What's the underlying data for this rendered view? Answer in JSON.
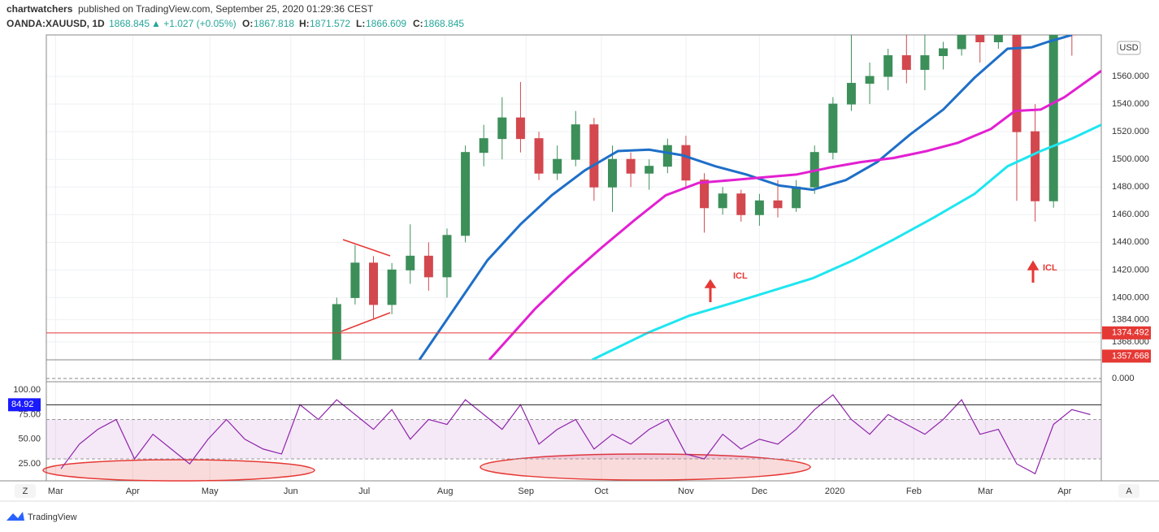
{
  "header": {
    "publisher": "chartwatchers",
    "published": "published on TradingView.com, September 25, 2020 01:29:36 CEST",
    "symbol": "OANDA:XAUUSD, 1D",
    "last": "1868.845",
    "change": "▲ +1.027 (+0.05%)",
    "o_label": "O:",
    "o": "1867.818",
    "h_label": "H:",
    "h": "1871.572",
    "l_label": "L:",
    "l": "1866.609",
    "c_label": "C:",
    "c": "1868.845"
  },
  "footer": {
    "brand": "TradingView",
    "z": "Z",
    "a": "A"
  },
  "chart_data": [
    {
      "type": "candlestick",
      "currency": "USD",
      "xlim": [
        -15.8,
        41.6
      ],
      "xticks": [
        {
          "value": -15.3,
          "label": "Mar"
        },
        {
          "value": -11.1,
          "label": "Apr"
        },
        {
          "value": -6.9,
          "label": "May"
        },
        {
          "value": -2.5,
          "label": "Jun"
        },
        {
          "value": 1.5,
          "label": "Jul"
        },
        {
          "value": 5.9,
          "label": "Aug"
        },
        {
          "value": 10.3,
          "label": "Sep"
        },
        {
          "value": 14.4,
          "label": "Oct"
        },
        {
          "value": 19.0,
          "label": "Nov"
        },
        {
          "value": 23.0,
          "label": "Dec"
        },
        {
          "value": 27.1,
          "label": "2020"
        },
        {
          "value": 31.4,
          "label": "Feb"
        },
        {
          "value": 35.3,
          "label": "Mar"
        },
        {
          "value": 39.6,
          "label": "Apr"
        }
      ],
      "ylim": [
        1355,
        1590
      ],
      "yticks": [
        {
          "value": 1368,
          "label": "1368.000"
        },
        {
          "value": 1384,
          "label": "1384.000"
        },
        {
          "value": 1400,
          "label": "1400.000"
        },
        {
          "value": 1420,
          "label": "1420.000"
        },
        {
          "value": 1440,
          "label": "1440.000"
        },
        {
          "value": 1460,
          "label": "1460.000"
        },
        {
          "value": 1480,
          "label": "1480.000"
        },
        {
          "value": 1500,
          "label": "1500.000"
        },
        {
          "value": 1520,
          "label": "1520.000"
        },
        {
          "value": 1540,
          "label": "1540.000"
        },
        {
          "value": 1560,
          "label": "1560.000"
        }
      ],
      "up_color": "#3d8f5a",
      "down_color": "#d2484e",
      "open": [
        1345,
        1400,
        1425,
        1395,
        1420,
        1430,
        1415,
        1445,
        1505,
        1515,
        1530,
        1515,
        1490,
        1500,
        1525,
        1480,
        1500,
        1490,
        1495,
        1510,
        1485,
        1465,
        1475,
        1460,
        1470,
        1465,
        1480,
        1505,
        1540,
        1555,
        1560,
        1575,
        1565,
        1575,
        1580,
        1600,
        1585,
        1600,
        1520,
        1470,
        1605
      ],
      "high": [
        1400,
        1438,
        1430,
        1425,
        1453,
        1440,
        1450,
        1510,
        1525,
        1545,
        1556,
        1520,
        1510,
        1535,
        1530,
        1510,
        1505,
        1500,
        1515,
        1517,
        1490,
        1480,
        1478,
        1475,
        1485,
        1485,
        1510,
        1545,
        1592,
        1570,
        1580,
        1592,
        1590,
        1585,
        1610,
        1615,
        1610,
        1610,
        1540,
        1620,
        1615
      ],
      "low": [
        1344,
        1395,
        1385,
        1388,
        1410,
        1405,
        1400,
        1440,
        1495,
        1500,
        1505,
        1485,
        1485,
        1495,
        1470,
        1462,
        1480,
        1478,
        1490,
        1480,
        1447,
        1460,
        1455,
        1452,
        1458,
        1462,
        1475,
        1500,
        1535,
        1540,
        1550,
        1555,
        1550,
        1565,
        1575,
        1570,
        1580,
        1470,
        1455,
        1465,
        1575
      ],
      "close": [
        1395,
        1425,
        1395,
        1420,
        1430,
        1415,
        1445,
        1505,
        1515,
        1530,
        1515,
        1490,
        1500,
        1525,
        1480,
        1500,
        1490,
        1495,
        1510,
        1485,
        1465,
        1475,
        1460,
        1470,
        1465,
        1480,
        1505,
        1540,
        1555,
        1560,
        1575,
        1565,
        1575,
        1580,
        1600,
        1585,
        1600,
        1520,
        1470,
        1605,
        1590
      ],
      "lines": [
        {
          "color": "#1e6fc8",
          "x": [
            4.5,
            6.4,
            8.2,
            10.0,
            11.7,
            13.5,
            15.3,
            17.0,
            18.8,
            20.6,
            22.3,
            24.1,
            25.9,
            27.7,
            29.4,
            31.2,
            33.0,
            34.7,
            36.5,
            37.8,
            38.7,
            40.0
          ],
          "values": [
            1355,
            1392,
            1427,
            1453,
            1474,
            1492,
            1506,
            1507,
            1503,
            1495,
            1489,
            1481,
            1478,
            1485,
            1498,
            1518,
            1536,
            1559,
            1580,
            1581,
            1585,
            1590
          ]
        },
        {
          "color": "#e220d2",
          "x": [
            8.3,
            10.8,
            12.6,
            14.4,
            16.2,
            17.9,
            19.7,
            21.5,
            23.2,
            25.0,
            26.8,
            28.5,
            30.3,
            32.1,
            33.8,
            35.6,
            36.9,
            38.3,
            39.6,
            41.6
          ],
          "values": [
            1355,
            1392,
            1415,
            1436,
            1456,
            1474,
            1483,
            1485,
            1487,
            1489,
            1494,
            1498,
            1501,
            1506,
            1512,
            1522,
            1535,
            1536,
            1545,
            1564
          ]
        },
        {
          "color": "#1ee6f0",
          "x": [
            13.9,
            17.0,
            19.2,
            21.5,
            23.7,
            25.9,
            28.1,
            30.3,
            32.5,
            34.7,
            36.5,
            38.3,
            40.0,
            41.6
          ],
          "values": [
            1355,
            1375,
            1387,
            1396,
            1405,
            1414,
            1427,
            1442,
            1458,
            1475,
            1495,
            1506,
            1515,
            1525
          ]
        }
      ],
      "price_tags": [
        1374.492,
        1357.668
      ],
      "tag_color": "#e53935",
      "annotations": [
        "ICL",
        "ICL"
      ]
    },
    {
      "type": "line",
      "color": "#8e24aa",
      "x": [
        -15,
        -14,
        -13,
        -12,
        -11,
        -10,
        -9,
        -8,
        -7,
        -6,
        -5,
        -4,
        -3,
        -2,
        -1,
        0,
        1,
        2,
        3,
        4,
        5,
        6,
        7,
        8,
        9,
        10,
        11,
        12,
        13,
        14,
        15,
        16,
        17,
        18,
        19,
        20,
        21,
        22,
        23,
        24,
        25,
        26,
        27,
        28,
        29,
        30,
        31,
        32,
        33,
        34,
        35,
        36,
        37,
        38,
        39,
        40,
        41
      ],
      "values": [
        20,
        45,
        60,
        70,
        30,
        55,
        40,
        25,
        50,
        70,
        50,
        40,
        35,
        85,
        70,
        90,
        75,
        60,
        80,
        50,
        70,
        65,
        90,
        75,
        60,
        85,
        45,
        60,
        70,
        40,
        55,
        45,
        60,
        70,
        35,
        30,
        55,
        40,
        50,
        45,
        60,
        80,
        95,
        70,
        55,
        75,
        65,
        55,
        70,
        90,
        55,
        60,
        25,
        15,
        65,
        80,
        75
      ],
      "ylim": [
        7.8,
        106.6
      ],
      "yticks": [
        {
          "value": 25,
          "label": "25.00"
        },
        {
          "value": 50,
          "label": "50.00"
        },
        {
          "value": 75,
          "label": "75.00"
        },
        {
          "value": 100,
          "label": "100.00"
        }
      ],
      "band": [
        30,
        70
      ],
      "marker": 84.92,
      "marker_color": "#1a1aff"
    }
  ]
}
